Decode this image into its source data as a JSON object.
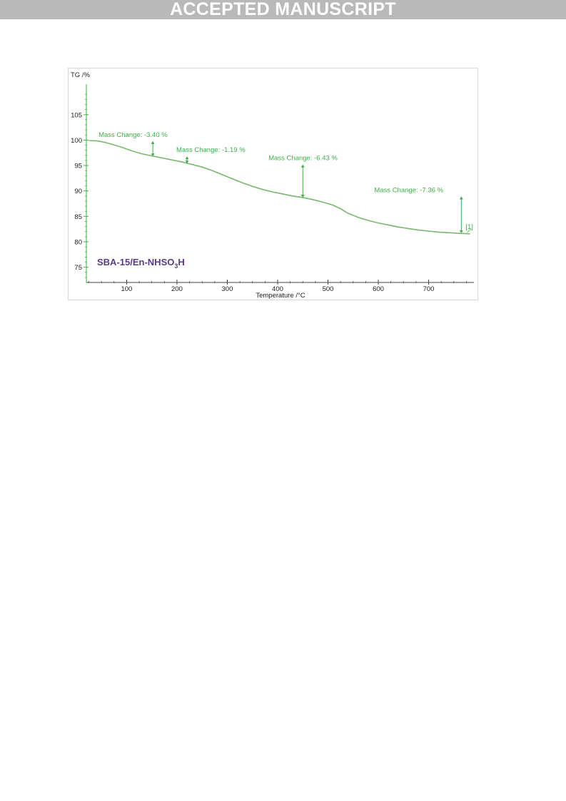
{
  "banner": {
    "text": "ACCEPTED MANUSCRIPT",
    "bg_color": "#b9b9b9",
    "text_color": "#ffffff"
  },
  "chart_data": {
    "type": "line",
    "ylabel": "TG /%",
    "xlabel": "Temperature /°C",
    "xlim": [
      20,
      790
    ],
    "ylim": [
      72,
      111
    ],
    "x_ticks": [
      100,
      200,
      300,
      400,
      500,
      600,
      700
    ],
    "y_ticks": [
      75,
      80,
      85,
      90,
      95,
      100,
      105
    ],
    "sample_label": {
      "main": "SBA-15/En-NHSO",
      "sub": "3",
      "end": "H"
    },
    "curve_color": "#77b96c",
    "annotation_color": "#3fae49",
    "axis_color": "#3fae49",
    "series": [
      {
        "x": [
          25,
          40,
          55,
          70,
          90,
          110,
          130,
          150,
          170,
          190,
          210,
          230,
          250,
          270,
          290,
          310,
          330,
          350,
          370,
          390,
          410,
          430,
          450,
          470,
          490,
          510,
          525,
          540,
          560,
          580,
          600,
          620,
          640,
          660,
          680,
          700,
          720,
          740,
          760,
          775,
          782
        ],
        "y": [
          99.9,
          99.85,
          99.6,
          99.2,
          98.6,
          97.9,
          97.3,
          96.9,
          96.5,
          96.1,
          95.7,
          95.2,
          94.7,
          94.0,
          93.2,
          92.4,
          91.6,
          90.9,
          90.3,
          89.8,
          89.4,
          89.0,
          88.7,
          88.3,
          87.8,
          87.2,
          86.5,
          85.6,
          84.8,
          84.2,
          83.7,
          83.3,
          82.9,
          82.6,
          82.3,
          82.1,
          81.9,
          81.8,
          81.65,
          81.6,
          81.55
        ]
      }
    ],
    "annotations": [
      {
        "label": "Mass Change: -3.40 %",
        "x": 152,
        "y_top": 99.8,
        "y_bottom": 96.8
      },
      {
        "label": "Mass Change: -1.19 %",
        "x": 220,
        "y_top": 96.8,
        "y_bottom": 95.4
      },
      {
        "label": "Mass Change: -6.43 %",
        "x": 450,
        "y_top": 95.2,
        "y_bottom": 88.7
      },
      {
        "label": "Mass Change: -7.36 %",
        "x": 765,
        "y_top": 88.9,
        "y_bottom": 81.7
      }
    ],
    "end_marker": "[1]"
  }
}
